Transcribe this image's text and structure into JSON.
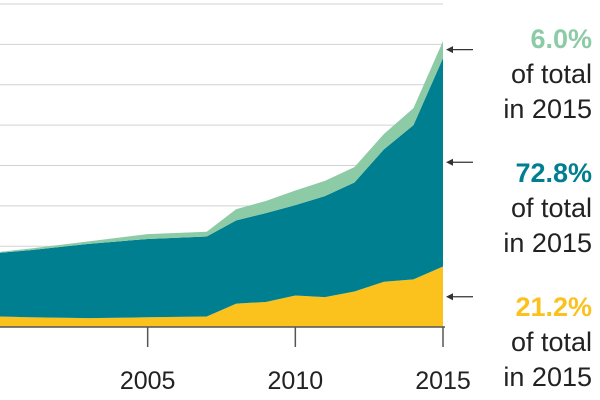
{
  "chart_data": {
    "type": "area",
    "stacked": true,
    "x": [
      2000,
      2001,
      2003,
      2005,
      2007,
      2008,
      2009,
      2010,
      2011,
      2012,
      2013,
      2014,
      2015
    ],
    "series": [
      {
        "color": "#fbc21e",
        "values": [
          1.3,
          1.2,
          1.1,
          1.2,
          1.3,
          2.9,
          3.1,
          3.9,
          3.7,
          4.4,
          5.6,
          5.9,
          7.5
        ]
      },
      {
        "color": "#007f91",
        "values": [
          7.9,
          8.3,
          9.2,
          9.7,
          9.9,
          10.3,
          11.0,
          11.2,
          12.5,
          13.5,
          16.4,
          19.1,
          25.8
        ]
      },
      {
        "color": "#8ccba6",
        "values": [
          0.1,
          0.2,
          0.3,
          0.6,
          0.6,
          1.4,
          1.5,
          1.8,
          1.9,
          1.9,
          1.9,
          2.1,
          2.1
        ]
      }
    ],
    "xticks": [
      {
        "value": 2005,
        "label": "2005"
      },
      {
        "value": 2010,
        "label": "2010"
      },
      {
        "value": 2015,
        "label": "2015"
      }
    ],
    "ylim": [
      0,
      40
    ],
    "xlim": [
      2000,
      2015
    ],
    "grid": true,
    "annotations": [
      {
        "series_index": 2,
        "value": "6.0%",
        "line1": "of total",
        "line2": "in 2015",
        "color": "#8ccba6"
      },
      {
        "series_index": 1,
        "value": "72.8%",
        "line1": "of total",
        "line2": "in 2015",
        "color": "#007f91"
      },
      {
        "series_index": 0,
        "value": "21.2%",
        "line1": "of total",
        "line2": "in 2015",
        "color": "#fbc21e"
      }
    ]
  }
}
